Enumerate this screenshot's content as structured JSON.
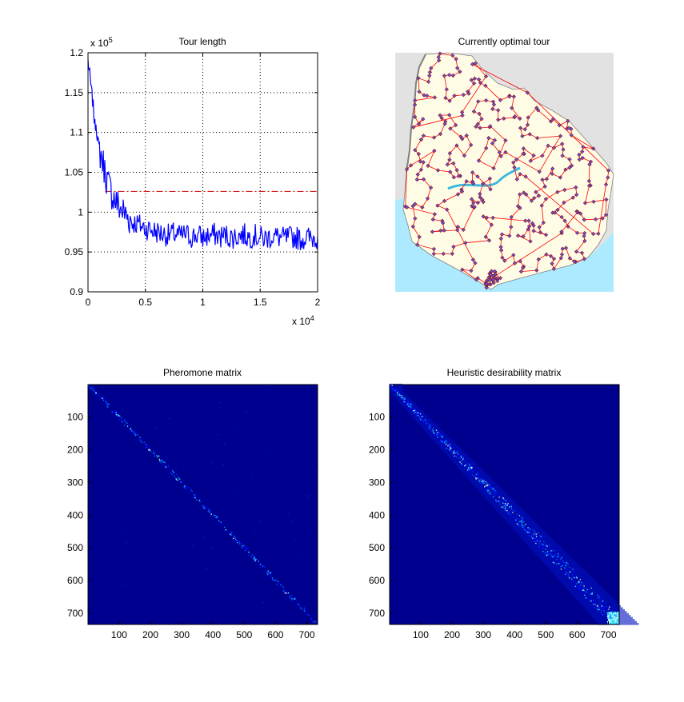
{
  "chart_data": [
    {
      "type": "line",
      "title": "Tour length",
      "xlabel": "",
      "ylabel": "",
      "xlim": [
        0,
        20000
      ],
      "ylim": [
        90000,
        120000
      ],
      "x_exponent_label": "x 10",
      "x_exponent": "4",
      "y_exponent_label": "x 10",
      "y_exponent": "5",
      "xticks": [
        0,
        0.5,
        1,
        1.5,
        2
      ],
      "xtick_labels": [
        "0",
        "0.5",
        "1",
        "1.5",
        "2"
      ],
      "yticks": [
        0.9,
        0.95,
        1,
        1.05,
        1.1,
        1.15,
        1.2
      ],
      "ytick_labels": [
        "0.9",
        "0.95",
        "1",
        "1.05",
        "1.1",
        "1.15",
        "1.2"
      ],
      "grid": true,
      "series_color": "#0000ff",
      "reference_line": {
        "value": 102600,
        "color": "#cc0000",
        "style": "dash-dot"
      },
      "x": [
        0,
        100,
        200,
        300,
        400,
        500,
        600,
        700,
        800,
        900,
        1000,
        1200,
        1400,
        1600,
        1800,
        2000,
        2200,
        2400,
        2600,
        2800,
        3000,
        3200,
        3400,
        3600,
        3800,
        4000,
        4500,
        5000,
        5500,
        6000,
        6500,
        7000,
        7500,
        8000,
        8500,
        9000,
        9500,
        10000,
        10500,
        11000,
        11500,
        12000,
        12500,
        13000,
        13500,
        14000,
        14500,
        15000,
        15500,
        16000,
        16500,
        17000,
        17500,
        18000,
        18500,
        19000,
        19500,
        20000
      ],
      "values": [
        119000,
        117800,
        116500,
        115200,
        114000,
        112500,
        110800,
        111200,
        109700,
        108500,
        107800,
        106800,
        105600,
        104400,
        103400,
        102600,
        102000,
        101400,
        100900,
        100500,
        100200,
        99800,
        99500,
        99200,
        98900,
        98700,
        98400,
        98000,
        97800,
        97500,
        97300,
        97100,
        97300,
        97000,
        97200,
        96900,
        97100,
        96800,
        97000,
        97200,
        96900,
        97100,
        96800,
        97000,
        97200,
        96900,
        97100,
        96800,
        96700,
        97000,
        96900,
        96700,
        96800,
        96900,
        96600,
        96800,
        96700,
        96900
      ]
    },
    {
      "type": "map",
      "title": "Currently optimal tour",
      "colors": {
        "land": "#fffce6",
        "water": "#aeeaff",
        "background": "#e2e2e2",
        "route": "#ff0000",
        "city": "#6655cc",
        "border": "#808080"
      }
    },
    {
      "type": "heatmap",
      "title": "Pheromone matrix",
      "xlim": [
        1,
        734
      ],
      "ylim": [
        1,
        734
      ],
      "xticks": [
        100,
        200,
        300,
        400,
        500,
        600,
        700
      ],
      "xtick_labels": [
        "100",
        "200",
        "300",
        "400",
        "500",
        "600",
        "700"
      ],
      "yticks": [
        100,
        200,
        300,
        400,
        500,
        600,
        700
      ],
      "ytick_labels": [
        "100",
        "200",
        "300",
        "400",
        "500",
        "600",
        "700"
      ],
      "background_color": "#00008f",
      "pattern": "sparse-diagonal"
    },
    {
      "type": "heatmap",
      "title": "Heuristic desirability matrix",
      "xlim": [
        1,
        734
      ],
      "ylim": [
        1,
        734
      ],
      "xticks": [
        100,
        200,
        300,
        400,
        500,
        600,
        700
      ],
      "xtick_labels": [
        "100",
        "200",
        "300",
        "400",
        "500",
        "600",
        "700"
      ],
      "yticks": [
        100,
        200,
        300,
        400,
        500,
        600,
        700
      ],
      "ytick_labels": [
        "100",
        "200",
        "300",
        "400",
        "500",
        "600",
        "700"
      ],
      "background_color": "#00008f",
      "pattern": "dense-diagonal"
    }
  ]
}
